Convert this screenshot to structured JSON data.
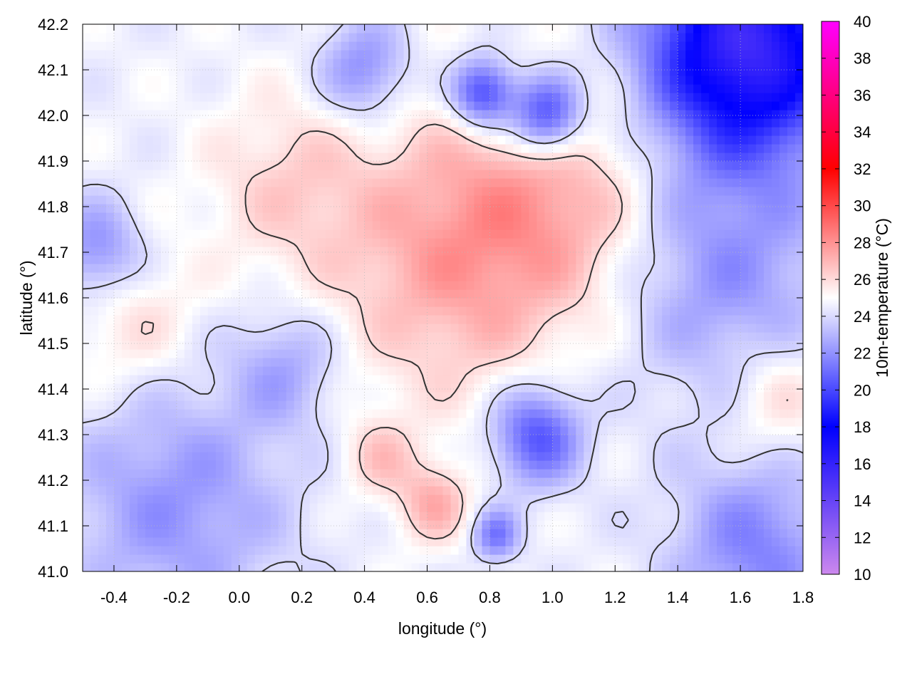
{
  "chart_data": {
    "type": "heatmap",
    "title": "",
    "xlabel": "longitude (°)",
    "ylabel": "latitude (°)",
    "colorbar_label": "10m-temperature (°C)",
    "xlim": [
      -0.5,
      1.8
    ],
    "ylim": [
      41.0,
      42.2
    ],
    "x_ticks": [
      "-0.4",
      "-0.2",
      "0.0",
      "0.2",
      "0.4",
      "0.6",
      "0.8",
      "1.0",
      "1.2",
      "1.4",
      "1.6",
      "1.8"
    ],
    "x_tick_values": [
      -0.4,
      -0.2,
      0.0,
      0.2,
      0.4,
      0.6,
      0.8,
      1.0,
      1.2,
      1.4,
      1.6,
      1.8
    ],
    "y_ticks": [
      "41.0",
      "41.1",
      "41.2",
      "41.3",
      "41.4",
      "41.5",
      "41.6",
      "41.7",
      "41.8",
      "41.9",
      "42.0",
      "42.1",
      "42.2"
    ],
    "y_tick_values": [
      41.0,
      41.1,
      41.2,
      41.3,
      41.4,
      41.5,
      41.6,
      41.7,
      41.8,
      41.9,
      42.0,
      42.1,
      42.2
    ],
    "colorbar_ticks": [
      "10",
      "12",
      "14",
      "16",
      "18",
      "20",
      "22",
      "24",
      "26",
      "28",
      "30",
      "32",
      "34",
      "36",
      "38",
      "40"
    ],
    "colorbar_range": [
      10,
      40
    ],
    "colorbar_stops": [
      {
        "value": 10,
        "color": "#cc88ee"
      },
      {
        "value": 18,
        "color": "#0000ff"
      },
      {
        "value": 25,
        "color": "#ffffff"
      },
      {
        "value": 32,
        "color": "#ff0000"
      },
      {
        "value": 40,
        "color": "#ff00ff"
      }
    ],
    "grid": true,
    "contour_levels": [
      24,
      26
    ],
    "field_blobs": [
      {
        "lon": 0.7,
        "lat": 41.7,
        "sigma": 0.28,
        "amp": 3.0
      },
      {
        "lon": 1.05,
        "lat": 41.82,
        "sigma": 0.22,
        "amp": 2.0
      },
      {
        "lon": 0.15,
        "lat": 41.85,
        "sigma": 0.18,
        "amp": 1.5
      },
      {
        "lon": -0.35,
        "lat": 41.55,
        "sigma": 0.15,
        "amp": 1.5
      },
      {
        "lon": 0.62,
        "lat": 41.15,
        "sigma": 0.08,
        "amp": 2.5
      },
      {
        "lon": 0.45,
        "lat": 41.25,
        "sigma": 0.08,
        "amp": 1.8
      },
      {
        "lon": 1.72,
        "lat": 41.38,
        "sigma": 0.12,
        "amp": 1.8
      },
      {
        "lon": 1.62,
        "lat": 42.15,
        "sigma": 0.22,
        "amp": -9.0
      },
      {
        "lon": 0.78,
        "lat": 42.05,
        "sigma": 0.07,
        "amp": -5.5
      },
      {
        "lon": 0.98,
        "lat": 42.0,
        "sigma": 0.08,
        "amp": -5.5
      },
      {
        "lon": 0.95,
        "lat": 41.3,
        "sigma": 0.1,
        "amp": -4.5
      },
      {
        "lon": 0.82,
        "lat": 41.08,
        "sigma": 0.05,
        "amp": -3.5
      },
      {
        "lon": -0.45,
        "lat": 41.7,
        "sigma": 0.1,
        "amp": -3.0
      },
      {
        "lon": 1.55,
        "lat": 41.65,
        "sigma": 0.25,
        "amp": -2.5
      },
      {
        "lon": 0.4,
        "lat": 42.1,
        "sigma": 0.1,
        "amp": -3.0
      },
      {
        "lon": -0.2,
        "lat": 41.15,
        "sigma": 0.25,
        "amp": -2.5
      },
      {
        "lon": 0.15,
        "lat": 41.45,
        "sigma": 0.12,
        "amp": -2.0
      },
      {
        "lon": 1.65,
        "lat": 41.05,
        "sigma": 0.18,
        "amp": -3.0
      }
    ],
    "field_base": 24.6
  }
}
